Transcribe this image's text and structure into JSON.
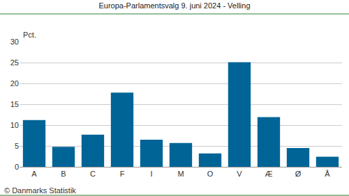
{
  "chart_data": {
    "type": "bar",
    "title": "Europa-Parlamentsvalg 9. juni 2024 - Velling",
    "ylabel": "Pct.",
    "annotations": [
      "© Danmarks Statistik"
    ],
    "categories": [
      "A",
      "B",
      "C",
      "F",
      "I",
      "M",
      "O",
      "V",
      "Æ",
      "Ø",
      "Å"
    ],
    "values": [
      11.2,
      4.8,
      7.7,
      17.8,
      6.5,
      5.7,
      3.2,
      25.1,
      11.9,
      4.5,
      2.4
    ],
    "color": "#006496",
    "ylim": [
      0,
      30
    ],
    "yticks": [
      0,
      5,
      10,
      15,
      20,
      25,
      30
    ],
    "grid": true
  }
}
